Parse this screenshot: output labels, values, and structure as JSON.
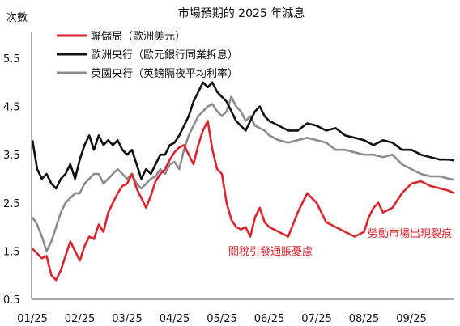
{
  "chart_data": {
    "type": "line",
    "title": "市場預期的 2025 年減息",
    "ylabel": "次數",
    "xlabel": "",
    "ylim": [
      0.5,
      5.5
    ],
    "y_ticks": [
      "0.5",
      "1.5",
      "2.5",
      "3.5",
      "4.5",
      "5.5"
    ],
    "y_tick_values": [
      0.5,
      1.5,
      2.5,
      3.5,
      4.5,
      5.5
    ],
    "x_ticks": [
      "01/25",
      "02/25",
      "03/25",
      "04/25",
      "05/25",
      "06/25",
      "07/25",
      "08/25",
      "09/25"
    ],
    "x_tick_values": [
      0,
      1,
      2,
      3,
      4,
      5,
      6,
      7,
      8
    ],
    "xlim": [
      0,
      8.95
    ],
    "grid": false,
    "legend_position": "top-left",
    "series": [
      {
        "name": "聯儲局（歐洲美元）",
        "color": "#d9262e",
        "x": [
          0,
          0.1,
          0.2,
          0.3,
          0.4,
          0.5,
          0.6,
          0.7,
          0.8,
          0.9,
          1.0,
          1.1,
          1.2,
          1.3,
          1.4,
          1.5,
          1.6,
          1.7,
          1.8,
          1.9,
          2.0,
          2.1,
          2.2,
          2.3,
          2.4,
          2.5,
          2.6,
          2.7,
          2.8,
          2.9,
          3.0,
          3.1,
          3.2,
          3.3,
          3.4,
          3.5,
          3.6,
          3.7,
          3.8,
          3.9,
          4.0,
          4.1,
          4.2,
          4.3,
          4.4,
          4.5,
          4.6,
          4.7,
          4.8,
          4.9,
          5.0,
          5.2,
          5.4,
          5.6,
          5.8,
          6.0,
          6.2,
          6.4,
          6.6,
          6.8,
          7.0,
          7.1,
          7.2,
          7.3,
          7.4,
          7.6,
          7.8,
          8.0,
          8.2,
          8.4,
          8.6,
          8.8,
          8.9
        ],
        "values": [
          1.55,
          1.45,
          1.35,
          1.4,
          1.0,
          0.9,
          1.1,
          1.4,
          1.7,
          1.5,
          1.3,
          1.6,
          1.8,
          1.75,
          2.05,
          1.9,
          2.3,
          2.5,
          2.7,
          2.85,
          2.9,
          3.1,
          2.8,
          2.6,
          2.4,
          2.65,
          2.95,
          3.1,
          3.2,
          3.4,
          3.55,
          3.65,
          3.7,
          3.5,
          3.3,
          3.7,
          4.0,
          4.2,
          3.6,
          3.2,
          3.1,
          2.5,
          2.15,
          2.0,
          1.95,
          2.0,
          1.8,
          2.2,
          2.4,
          2.1,
          2.0,
          1.9,
          1.8,
          2.3,
          2.7,
          2.5,
          2.1,
          2.0,
          1.9,
          1.8,
          1.9,
          2.2,
          2.4,
          2.5,
          2.3,
          2.4,
          2.7,
          2.9,
          2.95,
          2.85,
          2.8,
          2.75,
          2.7
        ]
      },
      {
        "name": "歐洲央行（歐元銀行同業拆息）",
        "color": "#111111",
        "x": [
          0,
          0.1,
          0.2,
          0.3,
          0.4,
          0.5,
          0.6,
          0.7,
          0.8,
          0.9,
          1.0,
          1.1,
          1.2,
          1.3,
          1.4,
          1.5,
          1.6,
          1.7,
          1.8,
          1.9,
          2.0,
          2.1,
          2.2,
          2.3,
          2.4,
          2.5,
          2.6,
          2.7,
          2.8,
          2.9,
          3.0,
          3.1,
          3.2,
          3.3,
          3.4,
          3.5,
          3.6,
          3.7,
          3.8,
          3.9,
          4.0,
          4.1,
          4.2,
          4.3,
          4.4,
          4.5,
          4.6,
          4.7,
          4.8,
          4.9,
          5.0,
          5.2,
          5.4,
          5.6,
          5.8,
          6.0,
          6.2,
          6.4,
          6.6,
          6.8,
          7.0,
          7.2,
          7.4,
          7.6,
          7.8,
          8.0,
          8.2,
          8.4,
          8.6,
          8.8,
          8.9
        ],
        "values": [
          3.8,
          3.2,
          3.0,
          3.1,
          2.9,
          2.8,
          3.0,
          3.1,
          3.3,
          3.0,
          3.4,
          3.7,
          3.9,
          3.6,
          3.9,
          3.7,
          3.8,
          3.7,
          3.8,
          3.6,
          3.5,
          3.6,
          3.3,
          3.0,
          3.2,
          3.1,
          3.3,
          3.5,
          3.5,
          3.7,
          3.75,
          3.9,
          4.1,
          4.3,
          4.6,
          4.8,
          5.0,
          4.9,
          5.0,
          4.8,
          4.7,
          4.6,
          4.4,
          4.2,
          4.1,
          4.0,
          4.2,
          4.4,
          4.5,
          4.3,
          4.2,
          4.1,
          4.0,
          4.0,
          4.15,
          4.1,
          4.0,
          4.05,
          3.9,
          3.85,
          3.8,
          3.7,
          3.8,
          3.75,
          3.6,
          3.6,
          3.5,
          3.45,
          3.4,
          3.4,
          3.38
        ]
      },
      {
        "name": "英國央行（英鎊隔夜平均利率）",
        "color": "#8c8c8c",
        "x": [
          0,
          0.1,
          0.2,
          0.3,
          0.4,
          0.5,
          0.6,
          0.7,
          0.8,
          0.9,
          1.0,
          1.1,
          1.2,
          1.3,
          1.4,
          1.5,
          1.6,
          1.7,
          1.8,
          1.9,
          2.0,
          2.1,
          2.2,
          2.3,
          2.4,
          2.5,
          2.6,
          2.7,
          2.8,
          2.9,
          3.0,
          3.1,
          3.2,
          3.3,
          3.4,
          3.5,
          3.6,
          3.7,
          3.8,
          3.9,
          4.0,
          4.1,
          4.2,
          4.3,
          4.4,
          4.5,
          4.6,
          4.7,
          4.8,
          4.9,
          5.0,
          5.2,
          5.4,
          5.6,
          5.8,
          6.0,
          6.2,
          6.4,
          6.6,
          6.8,
          7.0,
          7.2,
          7.4,
          7.6,
          7.8,
          8.0,
          8.2,
          8.4,
          8.6,
          8.8,
          8.9
        ],
        "values": [
          2.2,
          2.05,
          1.8,
          1.5,
          1.7,
          2.0,
          2.3,
          2.5,
          2.6,
          2.7,
          2.7,
          2.9,
          3.0,
          3.1,
          3.1,
          2.9,
          3.0,
          3.1,
          3.2,
          3.1,
          3.0,
          3.1,
          2.9,
          2.8,
          2.9,
          3.0,
          3.05,
          3.2,
          3.1,
          3.3,
          3.35,
          3.2,
          3.6,
          3.9,
          4.1,
          4.3,
          4.4,
          4.5,
          4.55,
          4.4,
          4.3,
          4.4,
          4.7,
          4.5,
          4.4,
          4.2,
          4.3,
          4.1,
          4.05,
          4.0,
          3.9,
          3.8,
          3.75,
          3.8,
          3.85,
          3.8,
          3.75,
          3.6,
          3.6,
          3.55,
          3.5,
          3.5,
          3.45,
          3.5,
          3.3,
          3.2,
          3.1,
          3.05,
          3.05,
          3.0,
          2.98
        ]
      }
    ],
    "annotations": [
      {
        "text": "關稅引發通脹憂慮",
        "color": "#d9262e"
      },
      {
        "text": "勞動市場出現裂痕",
        "color": "#d9262e"
      }
    ]
  }
}
